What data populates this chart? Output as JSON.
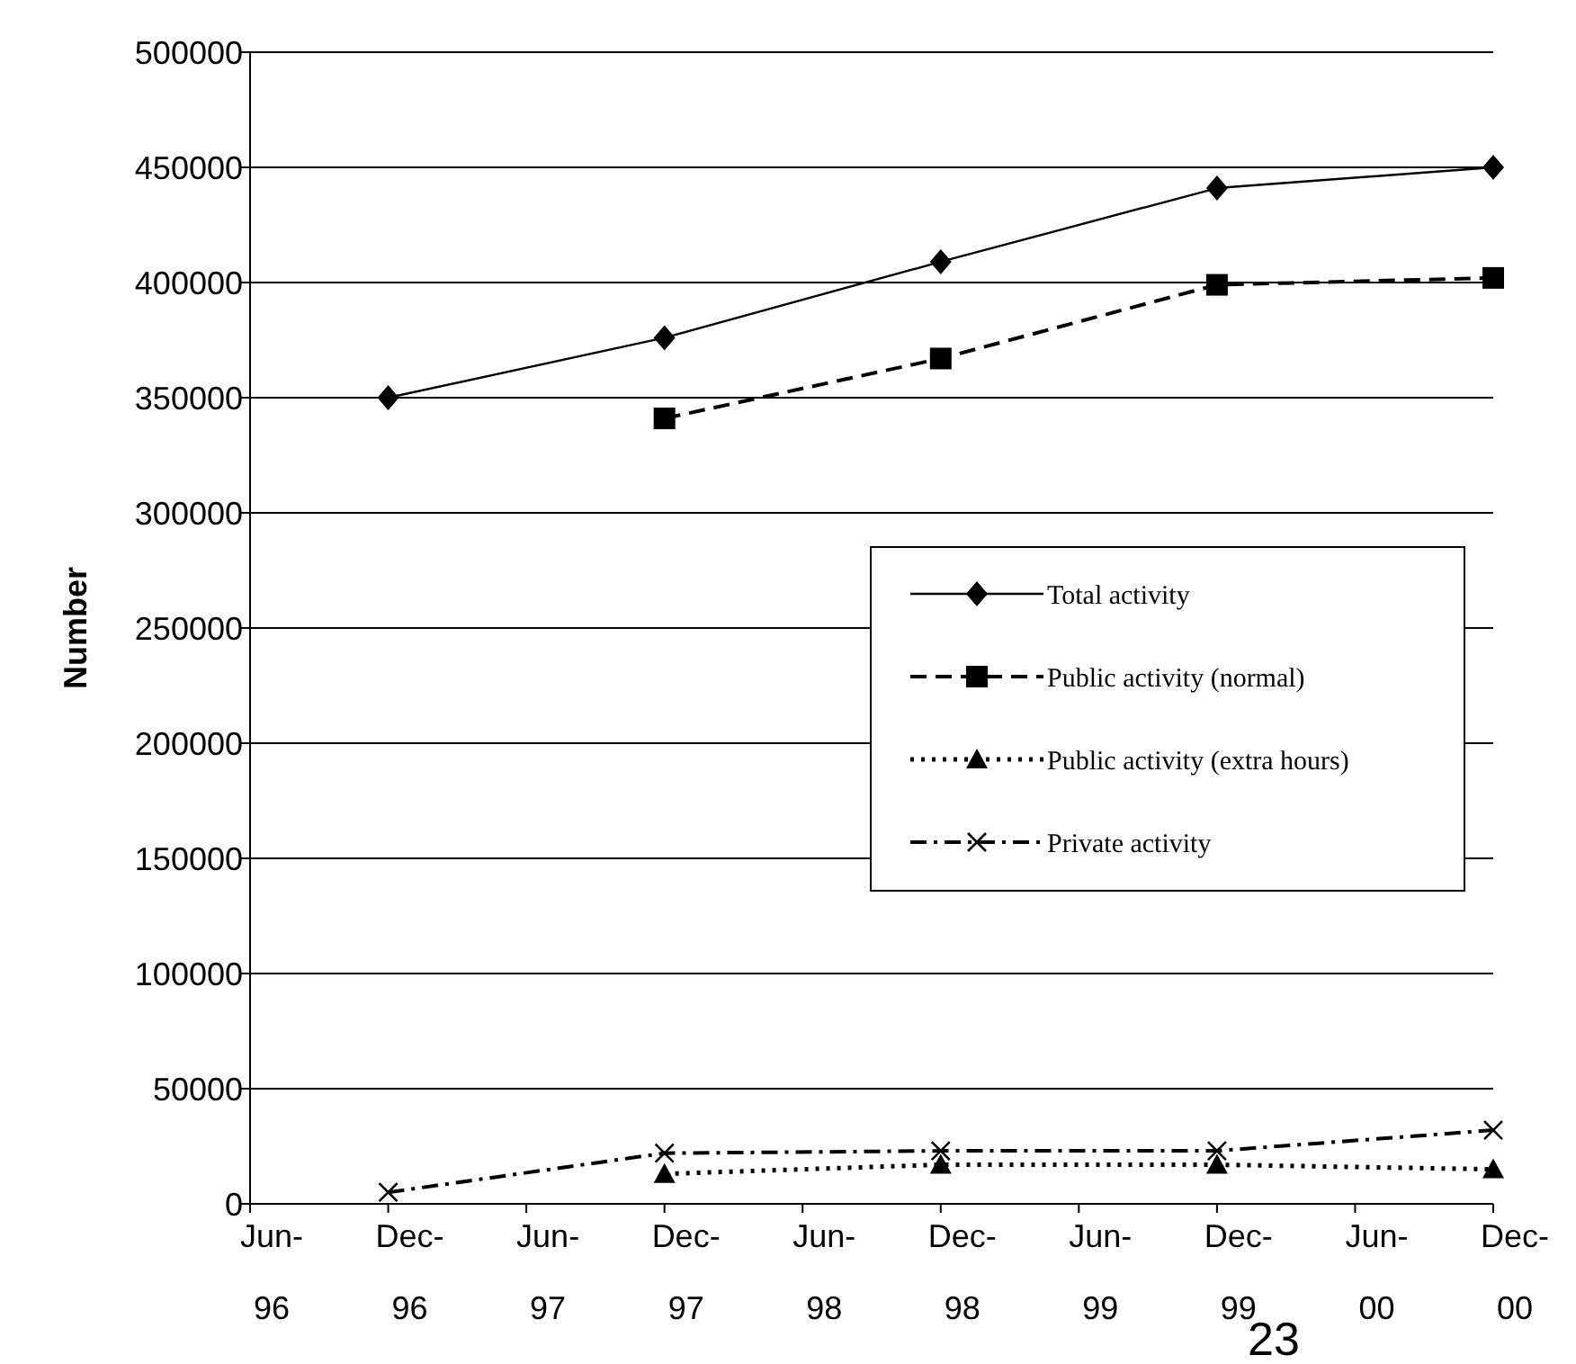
{
  "chart_data": {
    "type": "line",
    "ylabel": "Number",
    "categories": [
      "Jun-96",
      "Dec-96",
      "Jun-97",
      "Dec-97",
      "Jun-98",
      "Dec-98",
      "Jun-99",
      "Dec-99",
      "Jun-00",
      "Dec-00"
    ],
    "series": [
      {
        "name": "Total activity",
        "color": "#000000",
        "line_style": "solid",
        "marker": "diamond",
        "values": [
          null,
          350000,
          null,
          376000,
          null,
          409000,
          null,
          441000,
          null,
          450000
        ]
      },
      {
        "name": "Public activity (normal)",
        "color": "#000000",
        "line_style": "dashed",
        "marker": "square",
        "values": [
          null,
          null,
          null,
          341000,
          null,
          367000,
          null,
          399000,
          null,
          402000
        ]
      },
      {
        "name": "Public activity (extra hours)",
        "color": "#000000",
        "line_style": "dotted",
        "marker": "triangle",
        "values": [
          null,
          null,
          null,
          13000,
          null,
          17000,
          null,
          17000,
          null,
          15000
        ]
      },
      {
        "name": "Private activity",
        "color": "#000000",
        "line_style": "dashdot",
        "marker": "cross",
        "values": [
          null,
          5000,
          null,
          22000,
          null,
          23000,
          null,
          23000,
          null,
          32000
        ]
      }
    ],
    "ylim": [
      0,
      500000
    ],
    "yticks": [
      0,
      50000,
      100000,
      150000,
      200000,
      250000,
      300000,
      350000,
      400000,
      450000,
      500000
    ],
    "grid": "y",
    "legend": "right",
    "annotations": [
      "23"
    ]
  }
}
